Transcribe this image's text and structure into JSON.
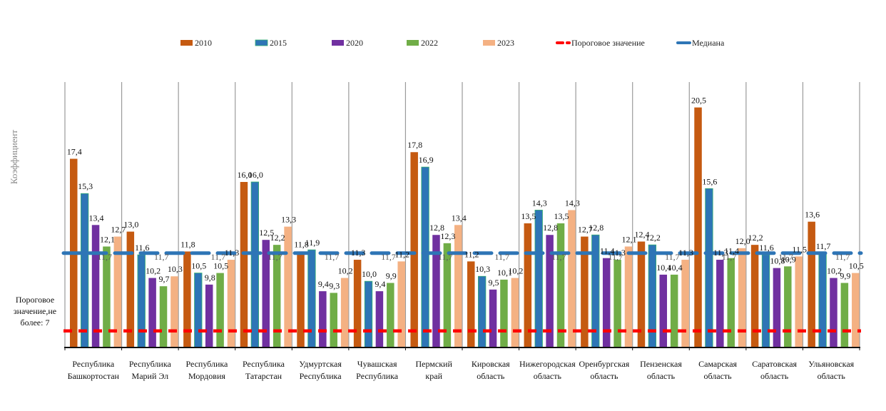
{
  "chart_data": {
    "type": "bar",
    "title": "",
    "xlabel": "",
    "ylabel": "Коэффициент",
    "ylim": [
      6,
      22
    ],
    "grid": "vertical separators between categories",
    "legend_position": "top",
    "decimal_separator": ",",
    "categories": [
      [
        "Республика",
        "Башкортостан"
      ],
      [
        "Республика",
        "Марий Эл"
      ],
      [
        "Республика",
        "Мордовия"
      ],
      [
        "Республика",
        "Татарстан"
      ],
      [
        "Удмуртская",
        "Республика"
      ],
      [
        "Чувашская",
        "Республика"
      ],
      [
        "Пермский",
        "край"
      ],
      [
        "Кировская",
        "область"
      ],
      [
        "Нижегородская",
        "область"
      ],
      [
        "Оренбургская",
        "область"
      ],
      [
        "Пензенская",
        "область"
      ],
      [
        "Самарская",
        "область"
      ],
      [
        "Саратовская",
        "область"
      ],
      [
        "Ульяновская",
        "область"
      ]
    ],
    "series": [
      {
        "name": "2010",
        "color": "#C55A11",
        "values": [
          17.4,
          13.0,
          11.8,
          16.0,
          11.8,
          11.3,
          17.8,
          11.2,
          13.5,
          12.7,
          12.4,
          20.5,
          12.2,
          13.6
        ]
      },
      {
        "name": "2015",
        "color": "#2E75B6",
        "values": [
          15.3,
          11.6,
          10.5,
          16.0,
          11.9,
          10.0,
          16.9,
          10.3,
          14.3,
          12.8,
          12.2,
          15.6,
          11.6,
          11.7
        ]
      },
      {
        "name": "2020",
        "color": "#7030A0",
        "values": [
          13.4,
          10.2,
          9.8,
          12.5,
          9.4,
          9.4,
          12.8,
          9.5,
          12.8,
          11.4,
          10.4,
          11.3,
          10.8,
          10.2
        ]
      },
      {
        "name": "2022",
        "color": "#70AD47",
        "values": [
          12.1,
          9.7,
          10.5,
          12.2,
          9.3,
          9.9,
          12.3,
          10.1,
          13.5,
          11.3,
          10.4,
          11.4,
          10.9,
          9.9
        ]
      },
      {
        "name": "2023",
        "color": "#F4B183",
        "values": [
          12.7,
          10.3,
          11.3,
          13.3,
          10.2,
          11.2,
          13.4,
          10.2,
          14.3,
          12.1,
          11.3,
          12.0,
          11.5,
          10.5
        ]
      }
    ],
    "reference_lines": [
      {
        "name": "Пороговое значение",
        "value": 7,
        "color": "#FF0000",
        "style": "dashed",
        "label": [
          "Пороговое",
          "значение,не",
          "более: 7"
        ]
      },
      {
        "name": "Медиана",
        "value": 11.7,
        "color": "#2E75B6",
        "style": "long-dash",
        "label": "11,7"
      }
    ]
  }
}
